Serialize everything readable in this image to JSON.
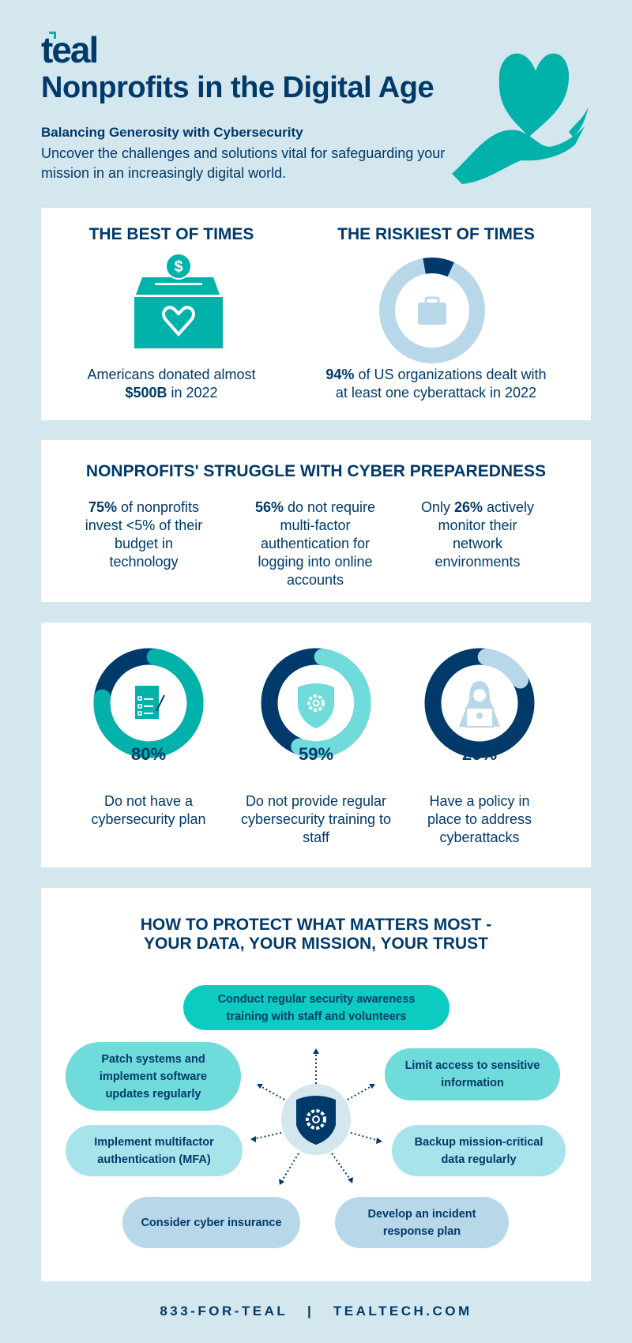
{
  "header": {
    "logo": "teal",
    "title": "Nonprofits in the Digital Age",
    "subtitle": "Balancing Generosity with Cybersecurity",
    "description": "Uncover the challenges and solutions vital for safeguarding your mission in an increasingly digital world."
  },
  "colors": {
    "navy": "#003a6b",
    "teal": "#00b2a9",
    "light_teal": "#6fdbdb",
    "light_blue": "#b8d8ea",
    "background": "#d4e6ee"
  },
  "times": {
    "best": {
      "heading": "THE BEST OF TIMES",
      "icon": "donation-box-heart-icon",
      "text1": "Americans donated almost",
      "bold": "$500B",
      "text2": " in 2022"
    },
    "riskiest": {
      "heading": "THE RISKIEST OF TIMES",
      "icon": "briefcase-icon",
      "percent": 94,
      "bold": "94%",
      "text1": " of US organizations dealt with",
      "text2": "at least one cyberattack in 2022"
    }
  },
  "struggle": {
    "heading": "NONPROFITS' STRUGGLE WITH CYBER PREPAREDNESS",
    "items": [
      {
        "pre": "",
        "bold": "75%",
        "post": " of nonprofits invest <5% of their budget in technology"
      },
      {
        "pre": "",
        "bold": "56%",
        "post": " do not require multi-factor authentication for logging into online accounts"
      },
      {
        "pre": "Only ",
        "bold": "26%",
        "post": " actively monitor their network environments"
      }
    ]
  },
  "stats": [
    {
      "percent": 80,
      "label": "80%",
      "text": "Do not have a cybersecurity plan",
      "icon": "checklist-icon",
      "color": "#00b2a9"
    },
    {
      "percent": 59,
      "label": "59%",
      "text": "Do not provide regular cybersecurity training to staff",
      "icon": "shield-gear-icon",
      "color": "#6fdbdb"
    },
    {
      "percent": 20,
      "label": "20%",
      "text": "Have a policy in place to address cyberattacks",
      "icon": "hacker-icon",
      "color": "#b8d8ea"
    }
  ],
  "protect": {
    "heading1": "HOW TO PROTECT WHAT MATTERS MOST -",
    "heading2": "YOUR DATA, YOUR MISSION, YOUR TRUST",
    "items": [
      "Conduct regular security awareness training with staff and volunteers",
      "Patch systems and implement software updates regularly",
      "Limit access to sensitive information",
      "Implement multifactor authentication (MFA)",
      "Backup mission-critical data regularly",
      "Consider cyber insurance",
      "Develop an incident response plan"
    ]
  },
  "footer": {
    "phone": "833-FOR-TEAL",
    "separator": "|",
    "website": "TEALTECH.COM"
  }
}
